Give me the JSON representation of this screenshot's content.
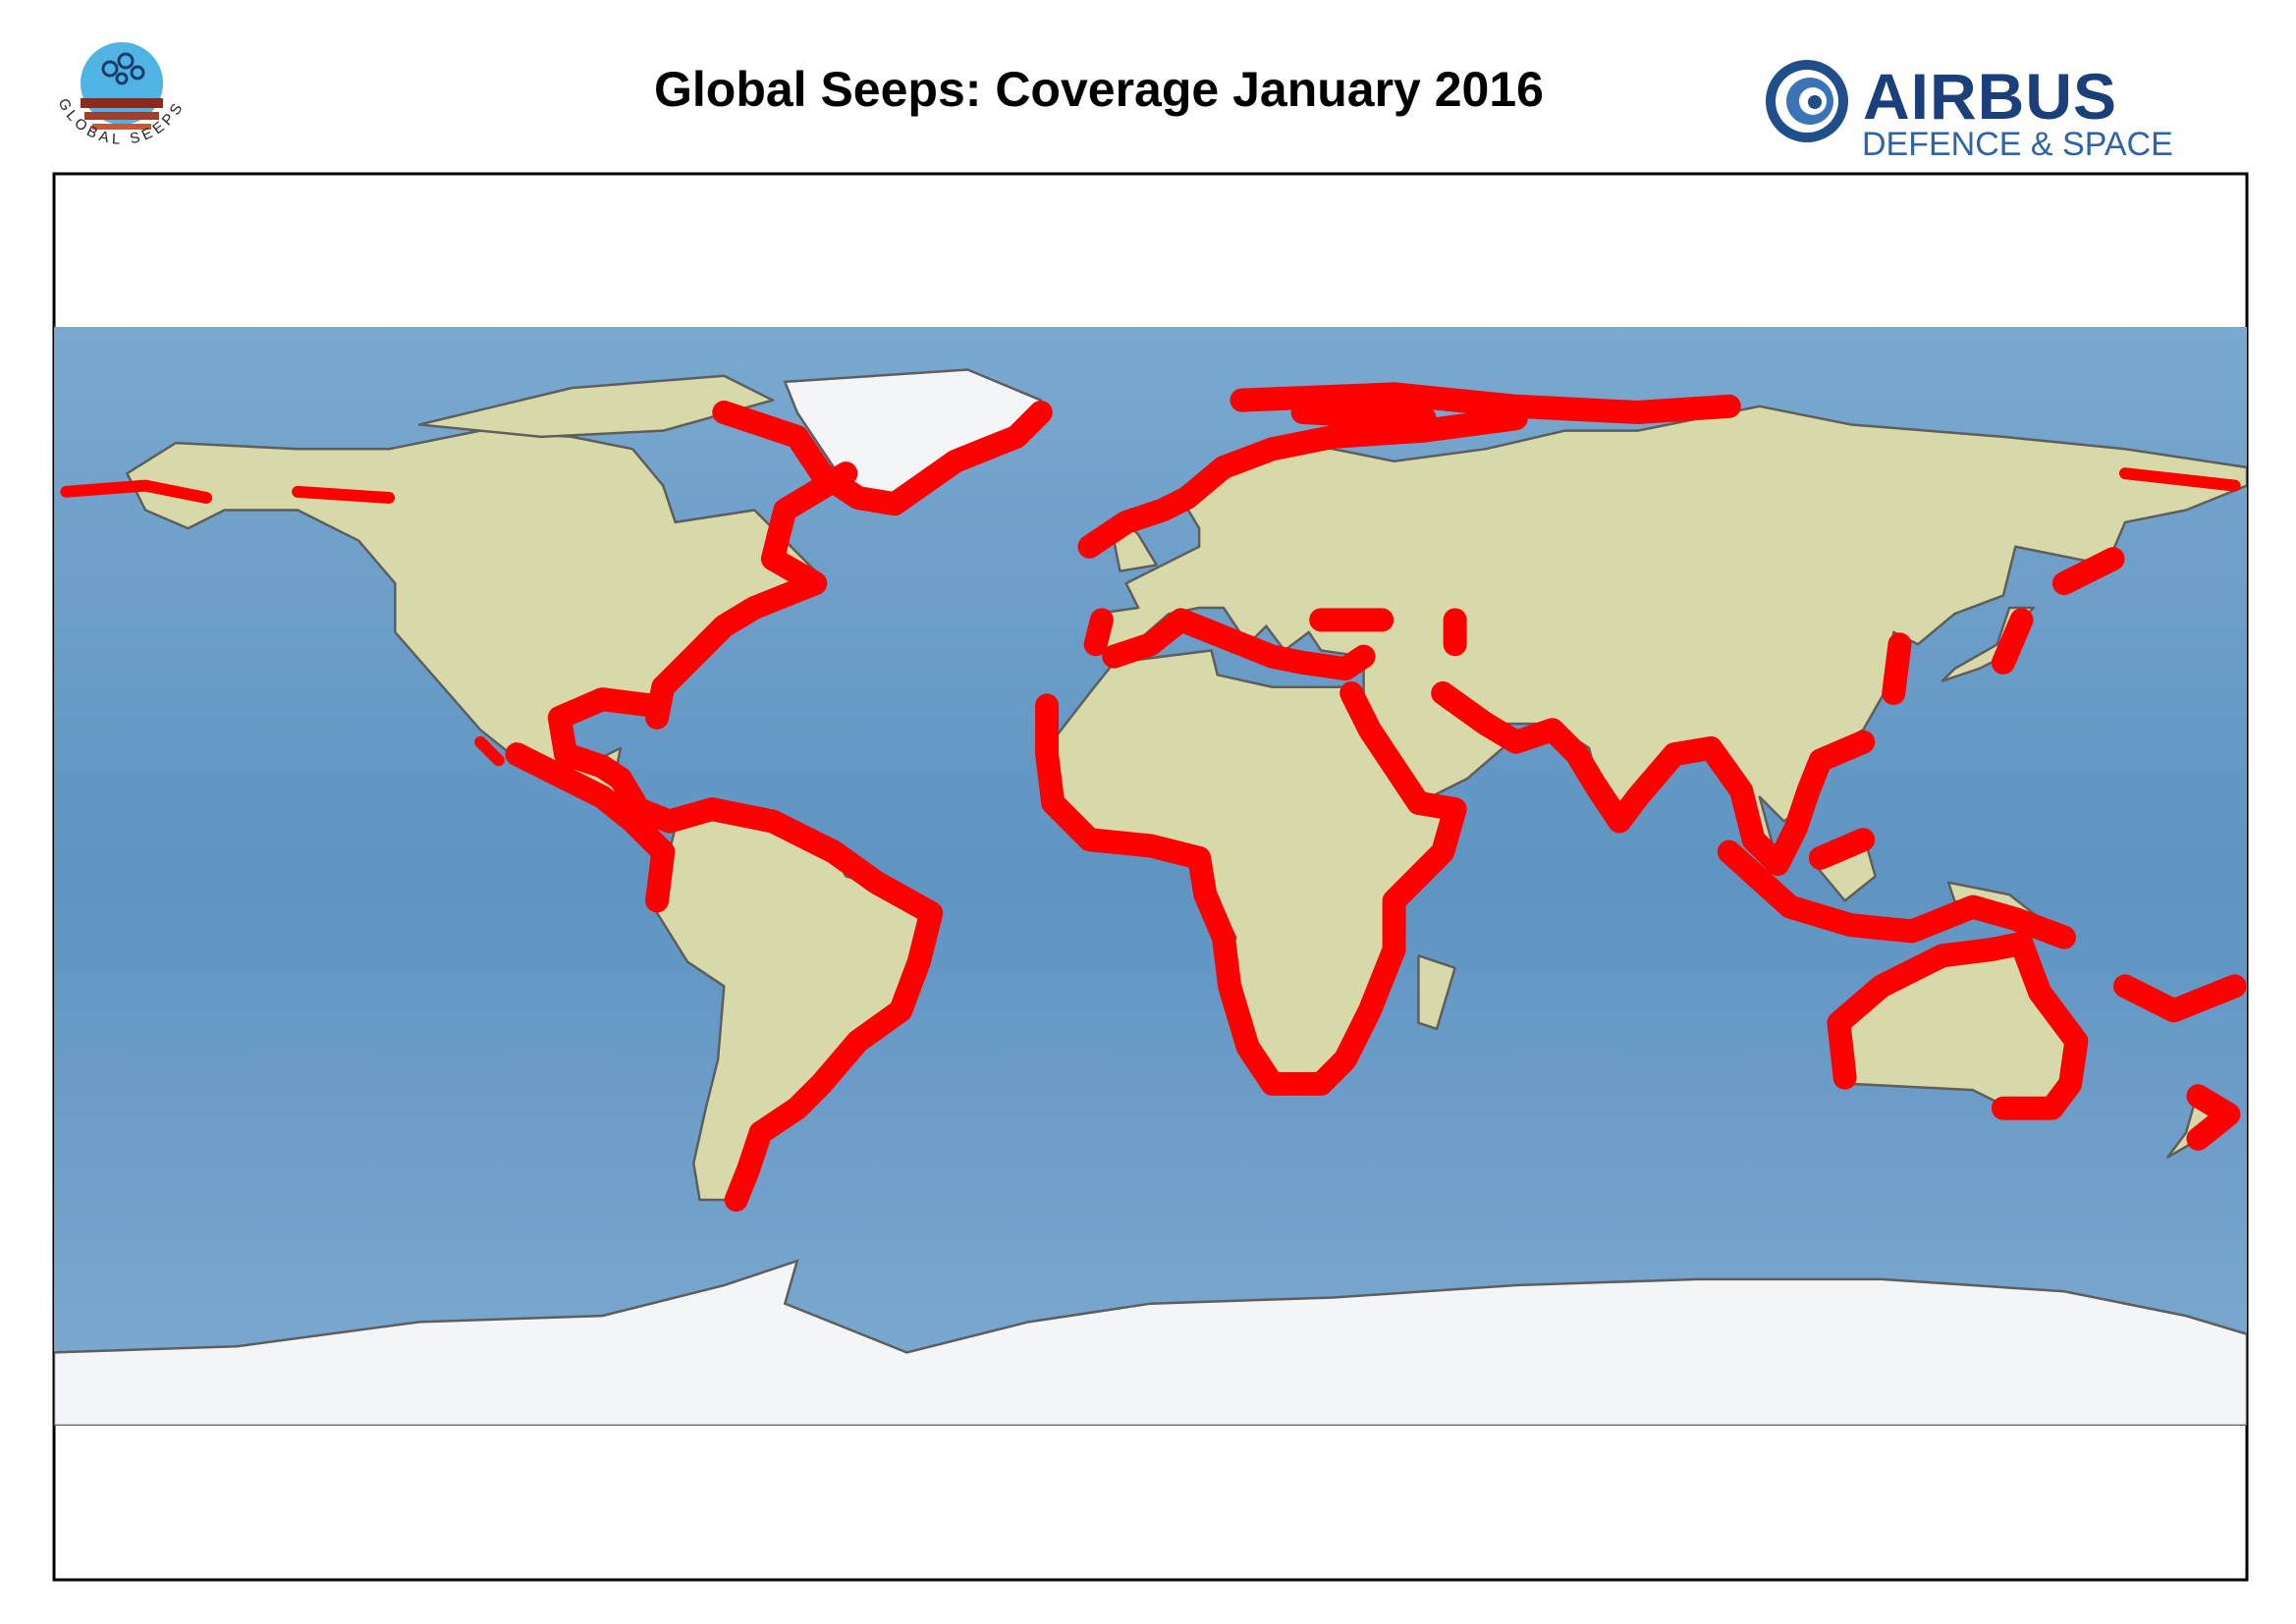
{
  "header": {
    "title": "Global Seeps: Coverage January 2016",
    "logo_left": {
      "text": "GLOBAL SEEPS"
    },
    "logo_right": {
      "name": "AIRBUS",
      "tagline": "DEFENCE & SPACE"
    }
  }
}
